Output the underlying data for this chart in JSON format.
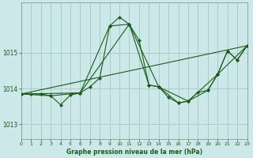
{
  "background_color": "#cce8e8",
  "grid_color": "#aacccc",
  "line_color": "#1a5c1a",
  "title": "Graphe pression niveau de la mer (hPa)",
  "xlim": [
    0,
    23
  ],
  "ylim": [
    1012.6,
    1016.4
  ],
  "yticks": [
    1013,
    1014,
    1015
  ],
  "xticks": [
    0,
    1,
    2,
    3,
    4,
    5,
    6,
    7,
    8,
    9,
    10,
    11,
    12,
    13,
    14,
    15,
    16,
    17,
    18,
    19,
    20,
    21,
    22,
    23
  ],
  "series": [
    {
      "x": [
        0,
        1,
        2,
        3,
        4,
        5,
        6,
        7,
        8,
        9,
        10,
        11,
        12,
        13,
        14,
        15,
        16,
        17,
        18,
        19,
        20,
        21,
        22,
        23
      ],
      "y": [
        1013.85,
        1013.85,
        1013.85,
        1013.8,
        1013.55,
        1013.82,
        1013.88,
        1014.05,
        1014.3,
        1015.75,
        1016.0,
        1015.8,
        1015.35,
        1014.1,
        1014.05,
        1013.75,
        1013.6,
        1013.65,
        1013.9,
        1013.95,
        1014.4,
        1015.05,
        1014.8,
        1015.2
      ],
      "marker": true
    },
    {
      "x": [
        0,
        3,
        6,
        9,
        11,
        13,
        14,
        16,
        17,
        19,
        20,
        21,
        22,
        23
      ],
      "y": [
        1013.85,
        1013.8,
        1013.88,
        1015.75,
        1015.8,
        1014.1,
        1014.05,
        1013.6,
        1013.65,
        1013.95,
        1014.4,
        1015.05,
        1014.8,
        1015.2
      ],
      "marker": true
    },
    {
      "x": [
        0,
        6,
        11,
        14,
        17,
        20,
        23
      ],
      "y": [
        1013.85,
        1013.88,
        1015.8,
        1014.05,
        1013.65,
        1014.4,
        1015.2
      ],
      "marker": true
    },
    {
      "x": [
        0,
        23
      ],
      "y": [
        1013.85,
        1015.2
      ],
      "marker": false
    }
  ]
}
